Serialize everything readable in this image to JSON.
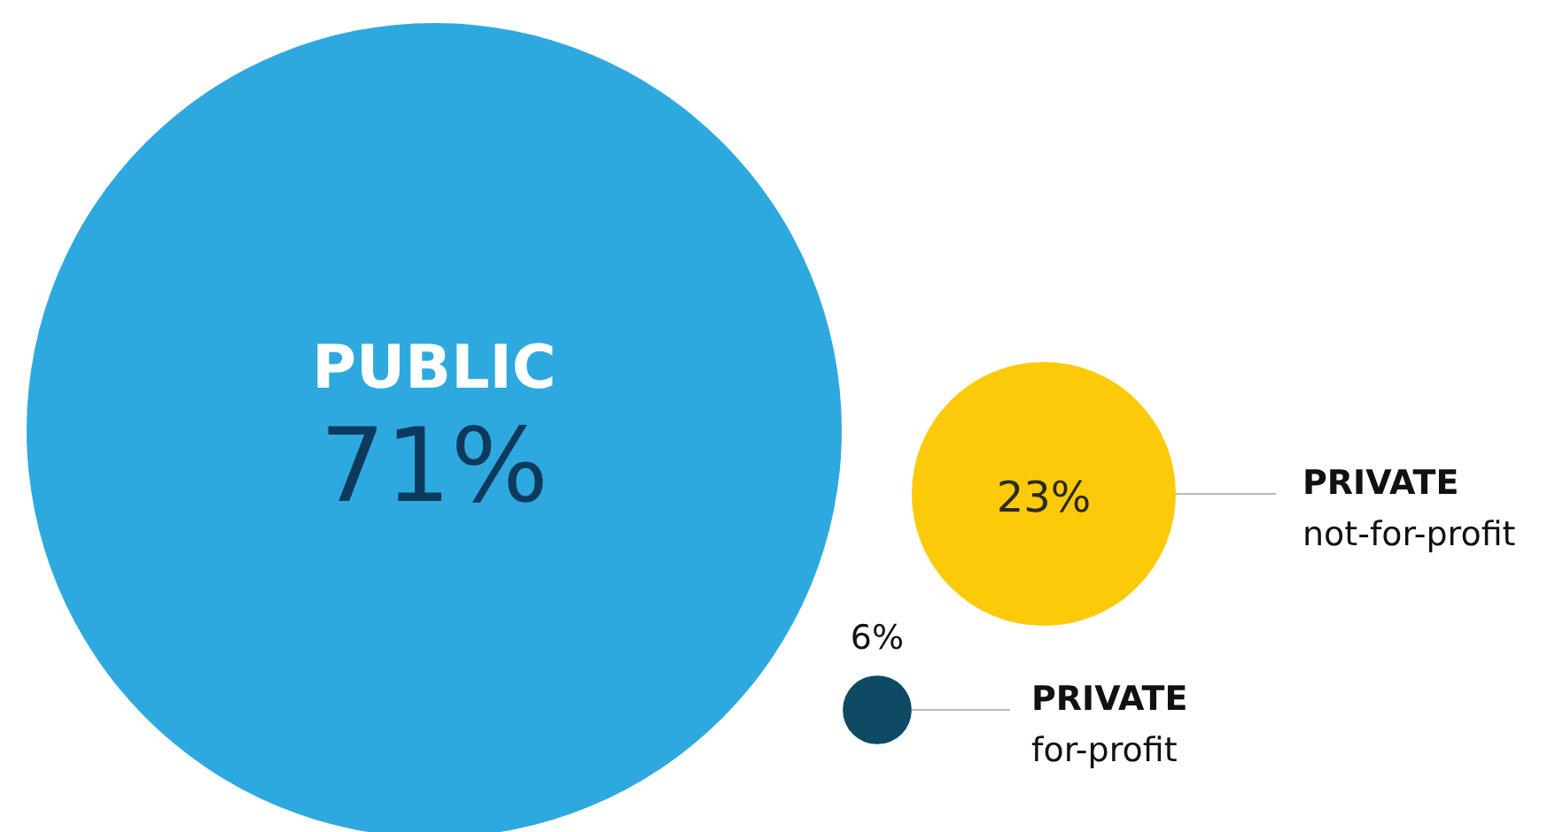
{
  "chart_data": {
    "type": "other",
    "categories": [
      "PUBLIC",
      "PRIVATE\nnot-for-profit",
      "PRIVATE\nfor-profit"
    ],
    "values": [
      71,
      23,
      6
    ],
    "colors": [
      "#2ea9e0",
      "#fdca0a",
      "#0e4a63"
    ],
    "value_labels": [
      "71%",
      "23%",
      "6%"
    ]
  }
}
